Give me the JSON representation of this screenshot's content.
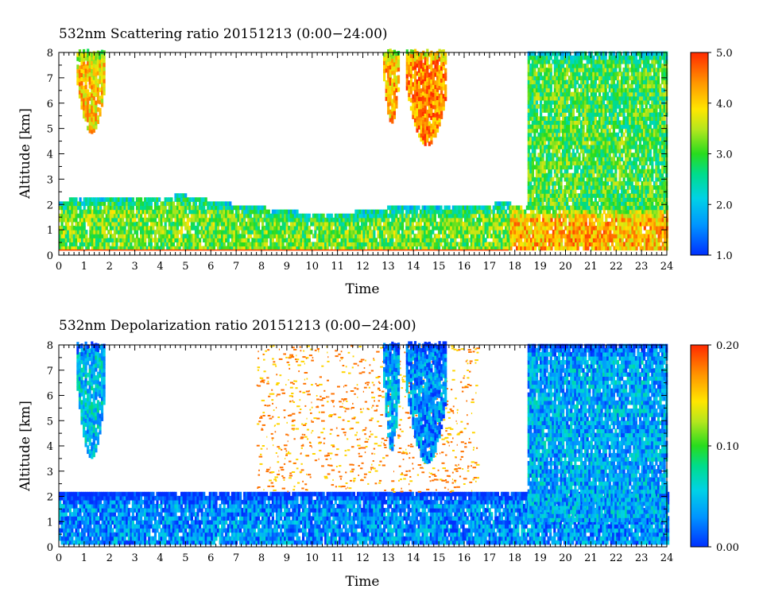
{
  "chart_data": [
    {
      "type": "heatmap",
      "title": "532nm Scattering ratio  20151213 (0:00−24:00)",
      "xlabel": "Time",
      "ylabel": "Altitude [km]",
      "xlim": [
        0,
        24
      ],
      "ylim": [
        0,
        8
      ],
      "x_ticks": [
        "0",
        "1",
        "2",
        "3",
        "4",
        "5",
        "6",
        "7",
        "8",
        "9",
        "10",
        "11",
        "12",
        "13",
        "14",
        "15",
        "16",
        "17",
        "18",
        "19",
        "20",
        "21",
        "22",
        "23",
        "24"
      ],
      "y_ticks": [
        "0",
        "1",
        "2",
        "3",
        "4",
        "5",
        "6",
        "7",
        "8"
      ],
      "colorbar": {
        "min": 1.0,
        "max": 5.0,
        "ticks": [
          "1.0",
          "2.0",
          "3.0",
          "4.0",
          "5.0"
        ]
      },
      "features": [
        {
          "name": "boundary-layer",
          "x": [
            0,
            17.8
          ],
          "y_top": [
            2.1,
            2.2,
            2.2,
            2.3,
            2.0,
            1.8,
            1.6,
            1.6,
            1.8,
            1.8,
            1.9,
            2.0
          ],
          "value": 3.2
        },
        {
          "name": "low-aerosol-layer",
          "x": [
            17.8,
            24
          ],
          "y": [
            0.2,
            1.8
          ],
          "value": 4.2
        },
        {
          "name": "cirrus-0.8-1.6h",
          "x": [
            0.7,
            1.8
          ],
          "y": [
            4.8,
            8
          ],
          "value": 4.0
        },
        {
          "name": "cirrus-13h",
          "x": [
            12.8,
            13.4
          ],
          "y": [
            5.2,
            8
          ],
          "value": 4.2
        },
        {
          "name": "cirrus-14.5-15.2h",
          "x": [
            13.7,
            15.3
          ],
          "y": [
            4.3,
            8
          ],
          "value": 4.5
        },
        {
          "name": "cirrus-18.5-24h",
          "x": [
            18.5,
            24
          ],
          "y": [
            1.8,
            8
          ],
          "value": 3.0
        }
      ]
    },
    {
      "type": "heatmap",
      "title": "532nm Depolarization ratio  20151213 (0:00−24:00)",
      "xlabel": "Time",
      "ylabel": "Altitude [km]",
      "xlim": [
        0,
        24
      ],
      "ylim": [
        0,
        8
      ],
      "x_ticks": [
        "0",
        "1",
        "2",
        "3",
        "4",
        "5",
        "6",
        "7",
        "8",
        "9",
        "10",
        "11",
        "12",
        "13",
        "14",
        "15",
        "16",
        "17",
        "18",
        "19",
        "20",
        "21",
        "22",
        "23",
        "24"
      ],
      "y_ticks": [
        "0",
        "1",
        "2",
        "3",
        "4",
        "5",
        "6",
        "7",
        "8"
      ],
      "colorbar": {
        "min": 0.0,
        "max": 0.2,
        "ticks": [
          "0.00",
          "0.10",
          "0.20"
        ]
      },
      "features": [
        {
          "name": "boundary-layer",
          "x": [
            0,
            24
          ],
          "y": [
            0.1,
            2.1
          ],
          "value": 0.03
        },
        {
          "name": "noise-region",
          "x": [
            7.8,
            16.5
          ],
          "y": [
            2.2,
            8
          ],
          "value": 0.18
        },
        {
          "name": "cirrus-0.8-1.6h",
          "x": [
            0.7,
            1.8
          ],
          "y": [
            3.5,
            8
          ],
          "value": 0.05
        },
        {
          "name": "cirrus-13h",
          "x": [
            12.8,
            13.4
          ],
          "y": [
            3.8,
            8
          ],
          "value": 0.04
        },
        {
          "name": "cirrus-14.5-15.2h",
          "x": [
            13.7,
            15.3
          ],
          "y": [
            3.3,
            8
          ],
          "value": 0.03
        },
        {
          "name": "cirrus-18.5-24h",
          "x": [
            18.5,
            24
          ],
          "y": [
            1.0,
            8
          ],
          "value": 0.04
        }
      ]
    }
  ]
}
